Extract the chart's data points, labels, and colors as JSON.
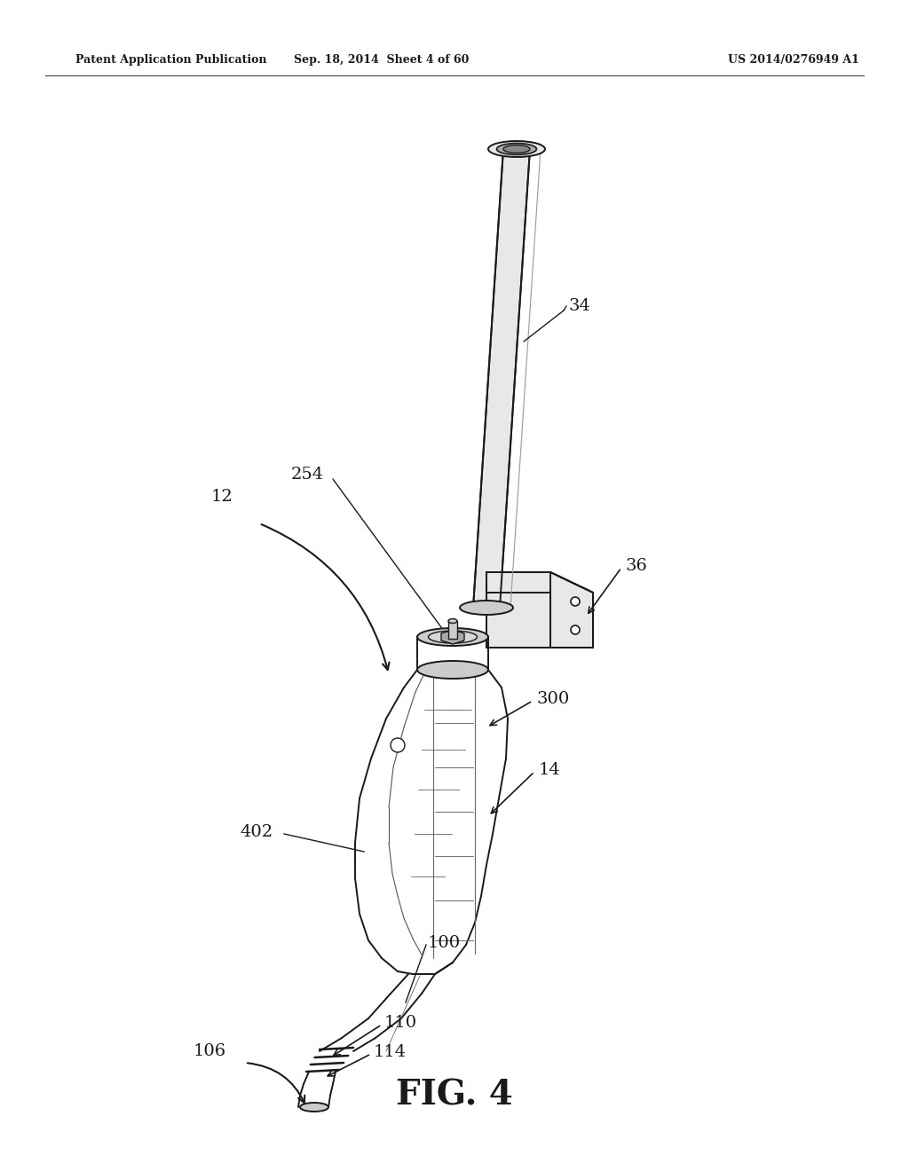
{
  "background_color": "#ffffff",
  "header_left": "Patent Application Publication",
  "header_center": "Sep. 18, 2014  Sheet 4 of 60",
  "header_right": "US 2014/0276949 A1",
  "figure_label": "FIG. 4",
  "line_color": "#1a1a1a",
  "shade_light": "#e8e8e8",
  "shade_mid": "#cccccc",
  "shade_dark": "#aaaaaa",
  "lw": 1.4
}
